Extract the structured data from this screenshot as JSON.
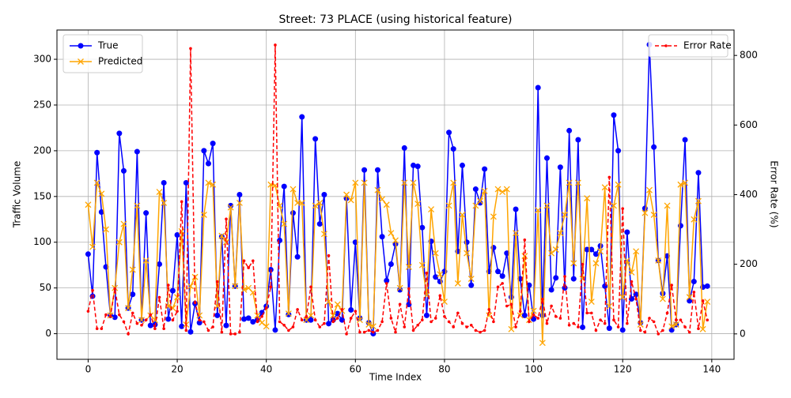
{
  "chart_data": {
    "type": "line",
    "title": "Street: 73 PLACE (using historical feature)",
    "xlabel": "Time Index",
    "ylabel": "Traffic Volume",
    "y2label": "Error Rate (%)",
    "x": [
      0,
      1,
      2,
      3,
      4,
      5,
      6,
      7,
      8,
      9,
      10,
      11,
      12,
      13,
      14,
      15,
      16,
      17,
      18,
      19,
      20,
      21,
      22,
      23,
      24,
      25,
      26,
      27,
      28,
      29,
      30,
      31,
      32,
      33,
      34,
      35,
      36,
      37,
      38,
      39,
      40,
      41,
      42,
      43,
      44,
      45,
      46,
      47,
      48,
      49,
      50,
      51,
      52,
      53,
      54,
      55,
      56,
      57,
      58,
      59,
      60,
      61,
      62,
      63,
      64,
      65,
      66,
      67,
      68,
      69,
      70,
      71,
      72,
      73,
      74,
      75,
      76,
      77,
      78,
      79,
      80,
      81,
      82,
      83,
      84,
      85,
      86,
      87,
      88,
      89,
      90,
      91,
      92,
      93,
      94,
      95,
      96,
      97,
      98,
      99,
      100,
      101,
      102,
      103,
      104,
      105,
      106,
      107,
      108,
      109,
      110,
      111,
      112,
      113,
      114,
      115,
      116,
      117,
      118,
      119,
      120,
      121,
      122,
      123,
      124,
      125,
      126,
      127,
      128,
      129,
      130,
      131,
      132,
      133,
      134,
      135,
      136,
      137,
      138,
      139
    ],
    "series": [
      {
        "name": "True",
        "color": "#0000ff",
        "marker": "o",
        "dashed": false,
        "values": [
          87,
          41,
          198,
          133,
          73,
          20,
          18,
          219,
          178,
          28,
          43,
          199,
          15,
          132,
          9,
          10,
          76,
          165,
          16,
          47,
          108,
          8,
          165,
          2,
          33,
          12,
          200,
          186,
          208,
          20,
          106,
          9,
          140,
          52,
          152,
          16,
          17,
          13,
          15,
          23,
          30,
          70,
          4,
          102,
          161,
          21,
          132,
          84,
          237,
          15,
          15,
          213,
          120,
          152,
          11,
          15,
          22,
          15,
          148,
          26,
          100,
          17,
          179,
          12,
          0,
          179,
          106,
          58,
          76,
          98,
          48,
          203,
          32,
          184,
          183,
          116,
          20,
          101,
          62,
          57,
          68,
          220,
          202,
          90,
          184,
          100,
          53,
          158,
          143,
          180,
          68,
          94,
          68,
          63,
          88,
          40,
          136,
          60,
          20,
          53,
          16,
          269,
          20,
          192,
          48,
          61,
          182,
          50,
          222,
          60,
          212,
          7,
          92,
          92,
          87,
          96,
          52,
          6,
          239,
          200,
          4,
          111,
          38,
          43,
          12,
          137,
          316,
          204,
          80,
          44,
          85,
          4,
          10,
          118,
          212,
          36,
          57,
          176,
          51,
          52
        ]
      },
      {
        "name": "Predicted",
        "color": "#ffa500",
        "marker": "x",
        "dashed": false,
        "values": [
          141,
          95,
          165,
          153,
          114,
          20,
          50,
          100,
          120,
          28,
          70,
          140,
          15,
          80,
          20,
          15,
          155,
          143,
          30,
          28,
          40,
          112,
          10,
          52,
          62,
          20,
          130,
          165,
          163,
          30,
          107,
          100,
          138,
          52,
          143,
          48,
          50,
          45,
          20,
          12,
          8,
          163,
          162,
          140,
          120,
          22,
          158,
          143,
          143,
          15,
          20,
          140,
          143,
          109,
          35,
          20,
          32,
          25,
          152,
          146,
          165,
          15,
          165,
          10,
          8,
          157,
          147,
          141,
          110,
          102,
          50,
          165,
          73,
          165,
          142,
          75,
          42,
          136,
          88,
          65,
          35,
          140,
          165,
          55,
          130,
          88,
          60,
          140,
          145,
          156,
          20,
          128,
          158,
          155,
          158,
          5,
          110,
          20,
          85,
          15,
          25,
          135,
          -10,
          140,
          88,
          92,
          110,
          130,
          165,
          77,
          165,
          60,
          148,
          35,
          77,
          90,
          160,
          30,
          140,
          163,
          40,
          80,
          67,
          90,
          10,
          132,
          157,
          130,
          80,
          38,
          140,
          8,
          10,
          163,
          165,
          40,
          125,
          145,
          5,
          35
        ]
      },
      {
        "name": "Error Rate",
        "color": "#ff0000",
        "marker": ".",
        "dashed": true,
        "axis": "y2",
        "values": [
          65,
          125,
          15,
          15,
          55,
          50,
          130,
          55,
          35,
          0,
          60,
          30,
          25,
          40,
          55,
          15,
          105,
          15,
          140,
          40,
          65,
          380,
          10,
          820,
          90,
          40,
          35,
          10,
          20,
          150,
          5,
          330,
          0,
          0,
          5,
          210,
          190,
          210,
          35,
          50,
          75,
          135,
          830,
          35,
          25,
          10,
          20,
          70,
          40,
          50,
          135,
          40,
          20,
          30,
          225,
          35,
          45,
          70,
          0,
          45,
          65,
          5,
          5,
          10,
          5,
          10,
          35,
          145,
          45,
          5,
          85,
          20,
          130,
          10,
          25,
          40,
          175,
          35,
          45,
          110,
          50,
          35,
          20,
          60,
          30,
          20,
          25,
          10,
          5,
          10,
          70,
          35,
          135,
          145,
          80,
          85,
          20,
          65,
          270,
          35,
          55,
          45,
          100,
          30,
          80,
          50,
          45,
          165,
          25,
          30,
          20,
          200,
          60,
          60,
          10,
          40,
          30,
          450,
          40,
          20,
          360,
          30,
          150,
          100,
          10,
          5,
          45,
          35,
          0,
          10,
          60,
          140,
          40,
          40,
          20,
          5,
          120,
          15,
          95,
          40
        ]
      }
    ],
    "xlim": [
      -7,
      145
    ],
    "xticks": [
      0,
      20,
      40,
      60,
      80,
      100,
      120,
      140
    ],
    "ylim": [
      -28,
      332
    ],
    "yticks": [
      0,
      50,
      100,
      150,
      200,
      250,
      300
    ],
    "y2lim": [
      -73,
      873
    ],
    "y2ticks": [
      0,
      200,
      400,
      600,
      800
    ],
    "grid": true,
    "legend": "upper left",
    "legend2": "upper right"
  }
}
